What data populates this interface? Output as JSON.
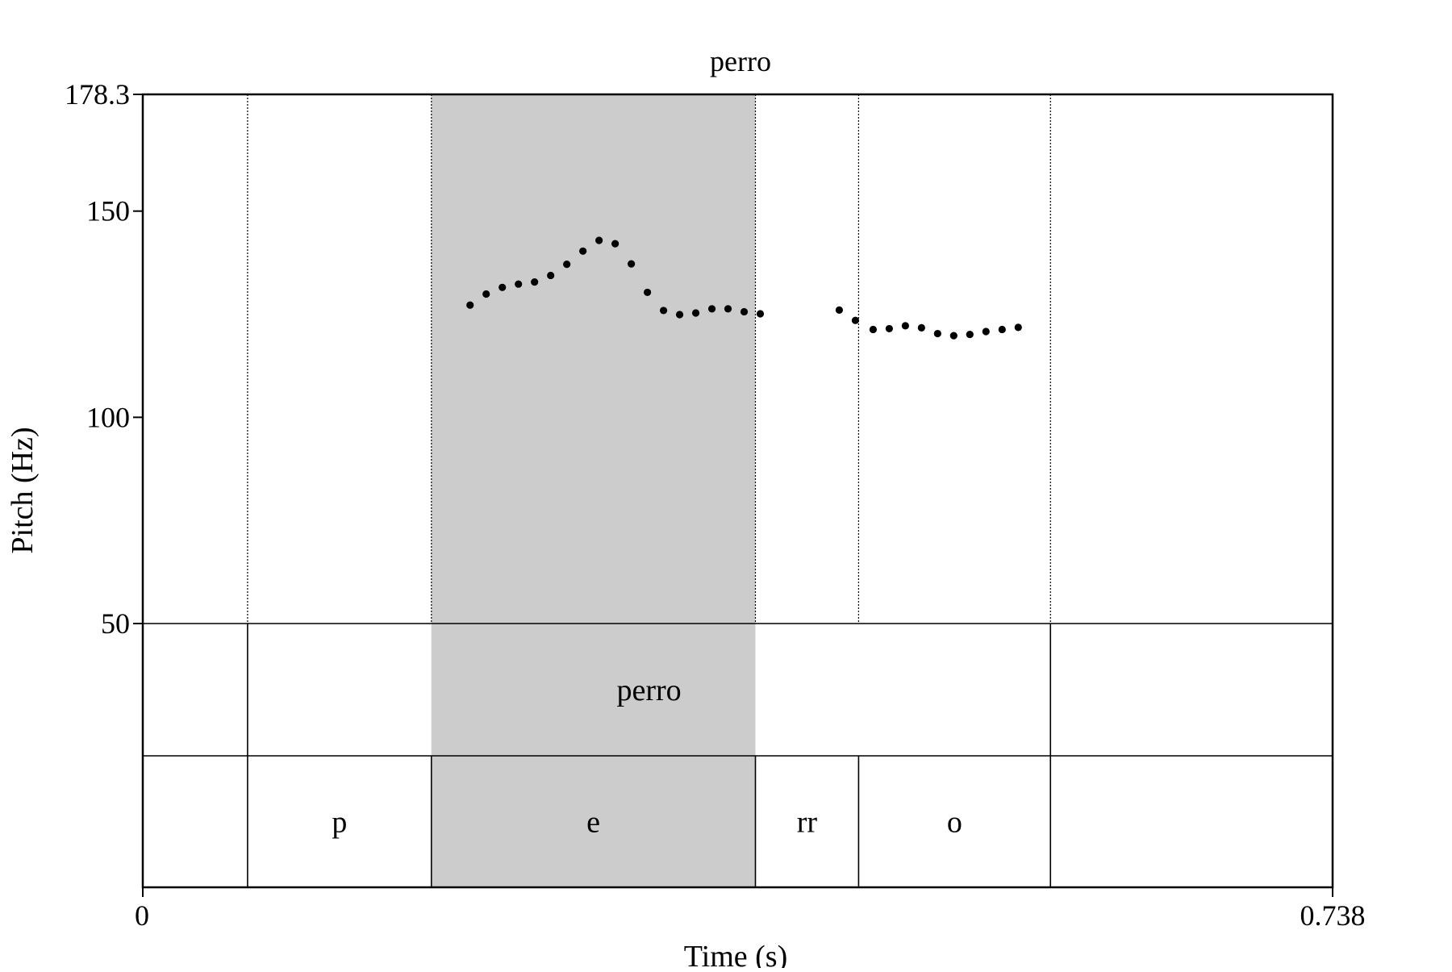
{
  "chart_data": {
    "type": "scatter",
    "title": "perro",
    "xlabel": "Time (s)",
    "ylabel": "Pitch (Hz)",
    "xlim": [
      0,
      0.738
    ],
    "ylim": [
      50,
      178.3
    ],
    "x_ticks": [
      "0",
      "0.738"
    ],
    "y_ticks": [
      {
        "value": 178.3,
        "label": "178.3"
      },
      {
        "value": 150,
        "label": "150"
      },
      {
        "value": 100,
        "label": "100"
      },
      {
        "value": 50,
        "label": "50"
      }
    ],
    "highlight": [
      0.179,
      0.38
    ],
    "boundaries": [
      0.065,
      0.179,
      0.38,
      0.444,
      0.563
    ],
    "series": [
      {
        "points": [
          [
            0.203,
            127.2
          ],
          [
            0.213,
            129.9
          ],
          [
            0.223,
            131.5
          ],
          [
            0.233,
            132.3
          ],
          [
            0.243,
            132.8
          ],
          [
            0.253,
            134.4
          ],
          [
            0.263,
            137.1
          ],
          [
            0.273,
            140.3
          ],
          [
            0.283,
            142.9
          ],
          [
            0.293,
            142.1
          ],
          [
            0.303,
            137.2
          ],
          [
            0.313,
            130.3
          ],
          [
            0.323,
            125.9
          ],
          [
            0.333,
            124.9
          ],
          [
            0.343,
            125.3
          ],
          [
            0.353,
            126.3
          ],
          [
            0.363,
            126.3
          ],
          [
            0.373,
            125.6
          ],
          [
            0.383,
            125.1
          ],
          [
            0.432,
            126.0
          ],
          [
            0.442,
            123.5
          ],
          [
            0.453,
            121.3
          ],
          [
            0.463,
            121.5
          ],
          [
            0.473,
            122.2
          ],
          [
            0.483,
            121.7
          ],
          [
            0.493,
            120.3
          ],
          [
            0.503,
            119.8
          ],
          [
            0.513,
            120.1
          ],
          [
            0.523,
            120.8
          ],
          [
            0.533,
            121.3
          ],
          [
            0.543,
            121.8
          ]
        ]
      }
    ],
    "tiers": [
      {
        "intervals": [
          {
            "start": 0.0,
            "end": 0.065,
            "label": ""
          },
          {
            "start": 0.065,
            "end": 0.563,
            "label": "perro"
          },
          {
            "start": 0.563,
            "end": 0.738,
            "label": ""
          }
        ]
      },
      {
        "intervals": [
          {
            "start": 0.0,
            "end": 0.065,
            "label": ""
          },
          {
            "start": 0.065,
            "end": 0.179,
            "label": "p"
          },
          {
            "start": 0.179,
            "end": 0.38,
            "label": "e"
          },
          {
            "start": 0.38,
            "end": 0.444,
            "label": "rr"
          },
          {
            "start": 0.444,
            "end": 0.563,
            "label": "o"
          },
          {
            "start": 0.563,
            "end": 0.738,
            "label": ""
          }
        ]
      }
    ],
    "colors": {
      "highlight": "#cccccc",
      "point": "#000000",
      "axis": "#000000"
    }
  }
}
